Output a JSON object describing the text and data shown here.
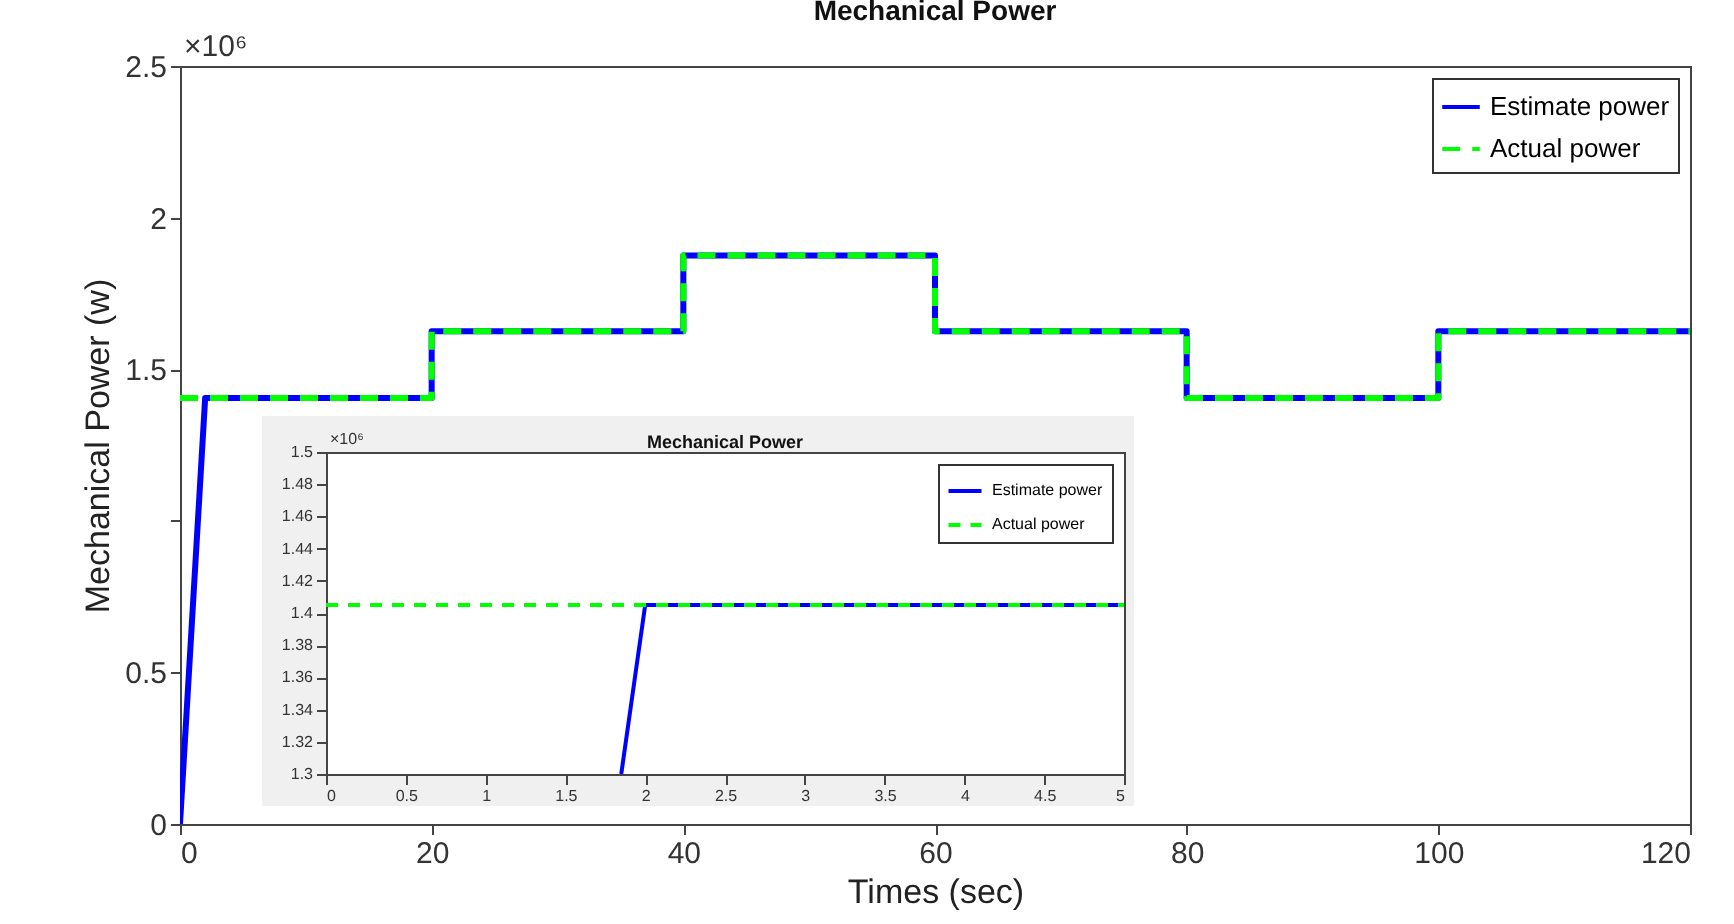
{
  "chart_data": [
    {
      "type": "line",
      "title": "Mechanical Power",
      "xlabel": "Times (sec)",
      "ylabel": "Mechanical Power (w)",
      "annotations": [
        "×10⁶"
      ],
      "legend": "top right",
      "xlim": [
        0,
        120
      ],
      "xticks": [
        0,
        20,
        40,
        60,
        80,
        100,
        120
      ],
      "ylim": [
        0,
        2.5
      ],
      "yticks": [
        0,
        0.5,
        {
          "value": 1,
          "label": null
        },
        1.5,
        2,
        2.5
      ],
      "series": [
        {
          "name": "Estimate power",
          "color": "#0000ff",
          "line_style": "solid",
          "x": [
            0,
            2,
            20,
            20,
            40,
            40,
            60,
            60,
            80,
            80,
            100,
            100,
            120
          ],
          "values": [
            0,
            1.405,
            1.405,
            1.625,
            1.625,
            1.875,
            1.875,
            1.625,
            1.625,
            1.405,
            1.405,
            1.625,
            1.625
          ]
        },
        {
          "name": "Actual power",
          "color": "#00ff00",
          "line_style": "dashed",
          "x": [
            0,
            20,
            20,
            40,
            40,
            60,
            60,
            80,
            80,
            100,
            100,
            120
          ],
          "values": [
            1.405,
            1.405,
            1.625,
            1.625,
            1.875,
            1.875,
            1.625,
            1.625,
            1.405,
            1.405,
            1.625,
            1.625
          ]
        }
      ]
    },
    {
      "type": "line",
      "title": "Mechanical Power",
      "annotations": [
        "×10⁶"
      ],
      "legend": "top right",
      "xlim": [
        0,
        5
      ],
      "xticks": [
        0,
        0.5,
        1,
        1.5,
        2,
        2.5,
        3,
        3.5,
        4,
        4.5,
        5
      ],
      "ylim": [
        1.3,
        1.5
      ],
      "yticks": [
        1.3,
        1.32,
        1.34,
        1.36,
        1.38,
        1.4,
        1.42,
        1.44,
        1.46,
        1.48,
        1.5
      ],
      "series": [
        {
          "name": "Estimate power",
          "color": "#0000ff",
          "line_style": "solid",
          "x": [
            1.85,
            2,
            5
          ],
          "values": [
            1.3,
            1.405,
            1.405
          ]
        },
        {
          "name": "Actual power",
          "color": "#00ff00",
          "line_style": "dashed",
          "x": [
            0,
            5
          ],
          "values": [
            1.405,
            1.405
          ]
        }
      ]
    }
  ]
}
